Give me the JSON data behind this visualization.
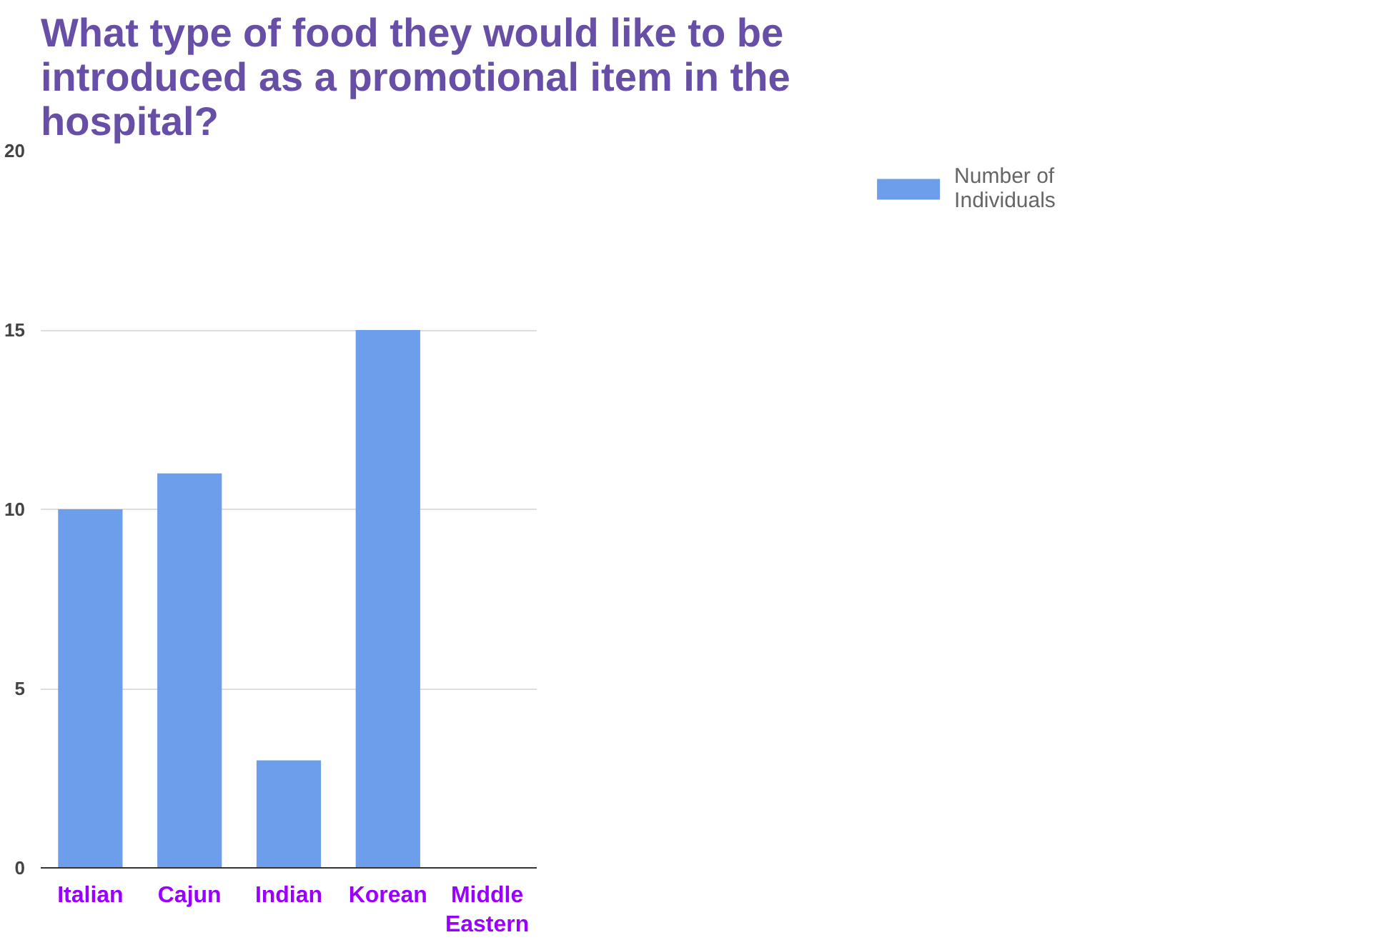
{
  "chart_data": {
    "type": "bar",
    "title": "What type of food they would like to be introduced as a promotional item in the hospital?",
    "categories": [
      "Italian",
      "Cajun",
      "Indian",
      "Korean",
      "Middle Eastern"
    ],
    "series": [
      {
        "name": "Number of Individuals",
        "color": "#6d9eeb",
        "values": [
          10,
          11,
          3,
          15,
          0
        ]
      }
    ],
    "ylim": [
      0,
      20
    ],
    "yticks": [
      0,
      5,
      10,
      15,
      20
    ],
    "grid": "y",
    "legend": "top right"
  }
}
